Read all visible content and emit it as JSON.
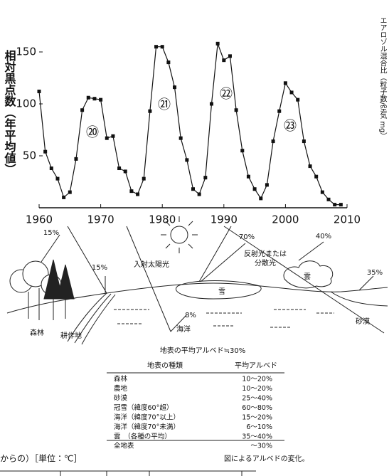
{
  "chart_data": {
    "type": "line",
    "y_label": "相対黒点数（年平均値）",
    "right_label": "エアロゾル混合比（粒子数/空気 mg）",
    "x": [
      1960,
      1961,
      1962,
      1963,
      1964,
      1965,
      1966,
      1967,
      1968,
      1969,
      1970,
      1971,
      1972,
      1973,
      1974,
      1975,
      1976,
      1977,
      1978,
      1979,
      1980,
      1981,
      1982,
      1983,
      1984,
      1985,
      1986,
      1987,
      1988,
      1989,
      1990,
      1991,
      1992,
      1993,
      1994,
      1995,
      1996,
      1997,
      1998,
      1999,
      2000,
      2001,
      2002,
      2003,
      2004,
      2005,
      2006,
      2007,
      2008,
      2009
    ],
    "series": [
      {
        "color": "#111111",
        "values": [
          112,
          54,
          38,
          28,
          10,
          15,
          47,
          94,
          106,
          105,
          104,
          67,
          69,
          38,
          35,
          16,
          13,
          28,
          93,
          155,
          155,
          140,
          116,
          67,
          46,
          18,
          13,
          29,
          100,
          158,
          142,
          146,
          94,
          55,
          30,
          18,
          9,
          22,
          64,
          93,
          120,
          111,
          104,
          64,
          40,
          30,
          15,
          8,
          3,
          3
        ]
      }
    ],
    "annotations": [
      "⑳",
      "㉑",
      "㉒",
      "㉓"
    ],
    "xlim": [
      1960,
      2010
    ],
    "ylim": [
      0,
      200
    ],
    "xticks": [
      1960,
      1970,
      1980,
      1990,
      2000,
      2010
    ],
    "yticks": [
      50,
      100,
      150
    ]
  },
  "diagram": {
    "labels": [
      "15%",
      "森林",
      "15%",
      "耕作地",
      "入射太陽光",
      "70%",
      "反射光または",
      "分散光",
      "雪",
      "8%",
      "海洋",
      "40%",
      "雲",
      "35%",
      "砂漠"
    ],
    "caption": "地表の平均アルベド≒30%"
  },
  "table": {
    "header": [
      "地表の種類",
      "平均アルベド"
    ],
    "rows": [
      [
        "森林",
        "10～20%"
      ],
      [
        "農地",
        "10～20%"
      ],
      [
        "砂漠",
        "25～40%"
      ],
      [
        "冠雪（緯度60°超）",
        "60～80%"
      ],
      [
        "海洋（緯度70°以上）",
        "15～20%"
      ],
      [
        "海洋（緯度70°未満）",
        "6～10%"
      ],
      [
        "雲　（各種の平均）",
        "35～40%"
      ],
      [
        "全地表",
        "～30%"
      ]
    ]
  },
  "footer": {
    "left": "からの）［単位：℃］",
    "caption": "図によるアルベドの変化。"
  }
}
